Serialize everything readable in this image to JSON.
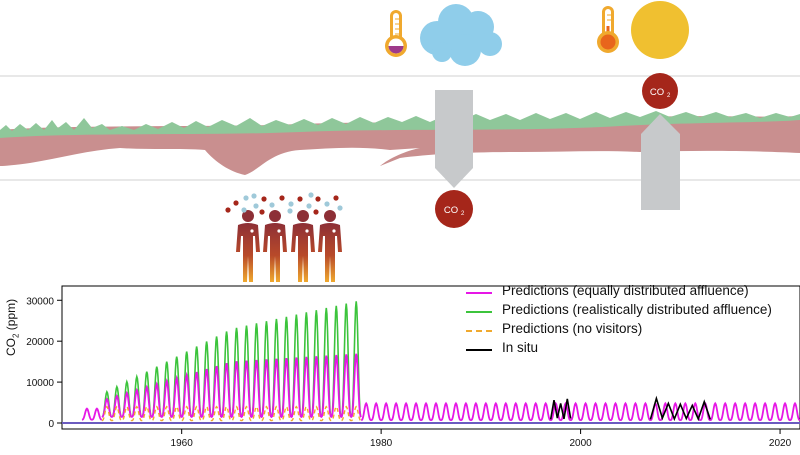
{
  "co2_label": "CO",
  "co2_sub": "2",
  "legend": [
    {
      "label": "Predictions (equally distributed affluence)",
      "color": "#e617e6",
      "style": "solid"
    },
    {
      "label": "Predictions (realistically distributed affluence)",
      "color": "#3cc43c",
      "style": "solid"
    },
    {
      "label": "Predictions (no visitors)",
      "color": "#f0a92e",
      "style": "dashed"
    },
    {
      "label": "In situ",
      "color": "#000000",
      "style": "solid"
    }
  ],
  "colors": {
    "sky_line": "#d0d0d0",
    "cave_rock": "#c98f8f",
    "vegetation": "#8fc79a",
    "co2_bubble": "#a5261a",
    "cloud": "#8fcdea",
    "sun": "#f0c030",
    "thermo": "#f0a92e",
    "person": "#8d2f36",
    "arrow": "#c7c9cb"
  },
  "chart_data": {
    "type": "line",
    "xlabel": "",
    "ylabel": "CO2 (ppm)",
    "xlim": [
      1948,
      2022
    ],
    "ylim": [
      0,
      33000
    ],
    "x_ticks": [
      1960,
      1980,
      2000,
      2020
    ],
    "y_ticks": [
      0,
      10000,
      20000,
      30000
    ],
    "series": [
      {
        "name": "Predictions (equally distributed affluence)",
        "segments": [
          {
            "x_start": 1950,
            "x_end": 1952,
            "base": 800,
            "peak": 3500
          },
          {
            "x_start": 1952,
            "x_end": 1978,
            "base": 1500,
            "peak_start": 5500,
            "peak_mid": 15000,
            "peak_end": 17000
          },
          {
            "x_start": 1978,
            "x_end": 2022,
            "base": 700,
            "peak": 4800
          }
        ]
      },
      {
        "name": "Predictions (realistically distributed affluence)",
        "segments": [
          {
            "x_start": 1952,
            "x_end": 1978,
            "base": 1500,
            "peak_start": 7000,
            "peak_mid": 23000,
            "peak_end": 30000
          }
        ]
      },
      {
        "name": "Predictions (no visitors)",
        "segments": [
          {
            "x_start": 1952,
            "x_end": 1978,
            "base": 600,
            "peak": 4000
          }
        ]
      },
      {
        "name": "In situ",
        "segments": [
          {
            "x_start": 1997,
            "x_end": 1999,
            "values": [
              900,
              5600,
              1200,
              4800,
              1000,
              5900,
              1100
            ]
          },
          {
            "x_start": 2007,
            "x_end": 2013,
            "values": [
              900,
              6000,
              1200,
              4800,
              1000,
              4600,
              1100,
              4300,
              1000,
              5200,
              900
            ]
          }
        ]
      }
    ]
  }
}
